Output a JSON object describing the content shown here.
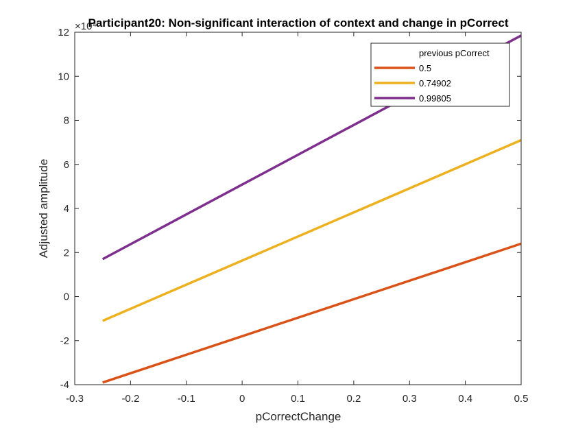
{
  "chart_data": {
    "type": "line",
    "title": "Participant20: Non-significant interaction of context and change in pCorrect",
    "xlabel": "pCorrectChange",
    "ylabel": "Adjusted amplitude",
    "exponent_label": "×10⁴",
    "xlim": [
      -0.3,
      0.5
    ],
    "ylim": [
      -4,
      12
    ],
    "xticks": [
      -0.3,
      -0.2,
      -0.1,
      0,
      0.1,
      0.2,
      0.3,
      0.4,
      0.5
    ],
    "xtick_labels": [
      "-0.3",
      "-0.2",
      "-0.1",
      "0",
      "0.1",
      "0.2",
      "0.3",
      "0.4",
      "0.5"
    ],
    "yticks": [
      -4,
      -2,
      0,
      2,
      4,
      6,
      8,
      10,
      12
    ],
    "ytick_labels": [
      "-4",
      "-2",
      "0",
      "2",
      "4",
      "6",
      "8",
      "10",
      "12"
    ],
    "grid": false,
    "legend": {
      "title": "previous pCorrect",
      "placement": "top-right"
    },
    "series": [
      {
        "name": "0.5",
        "color": "#D95319",
        "x": [
          -0.25,
          0.5
        ],
        "y": [
          -3.9,
          2.4
        ]
      },
      {
        "name": "0.74902",
        "color": "#EDB120",
        "x": [
          -0.25,
          0.5
        ],
        "y": [
          -1.1,
          7.1
        ]
      },
      {
        "name": "0.99805",
        "color": "#7E2F8E",
        "x": [
          -0.25,
          0.5
        ],
        "y": [
          1.7,
          11.85
        ]
      }
    ]
  }
}
